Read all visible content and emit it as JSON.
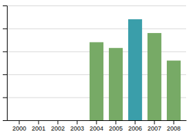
{
  "chart_data": {
    "type": "bar",
    "categories": [
      "2000",
      "2001",
      "2002",
      "2003",
      "2004",
      "2005",
      "2006",
      "2007",
      "2008"
    ],
    "values": [
      0,
      0,
      0,
      0,
      68,
      63,
      88,
      76,
      52
    ],
    "colors": [
      "#77aa66",
      "#77aa66",
      "#77aa66",
      "#77aa66",
      "#77aa66",
      "#77aa66",
      "#3a9eaa",
      "#77aa66",
      "#77aa66"
    ],
    "ylim": [
      0,
      100
    ],
    "yticks": [
      20,
      40,
      60,
      80,
      100
    ],
    "grid": true,
    "tick_labels": "x"
  }
}
